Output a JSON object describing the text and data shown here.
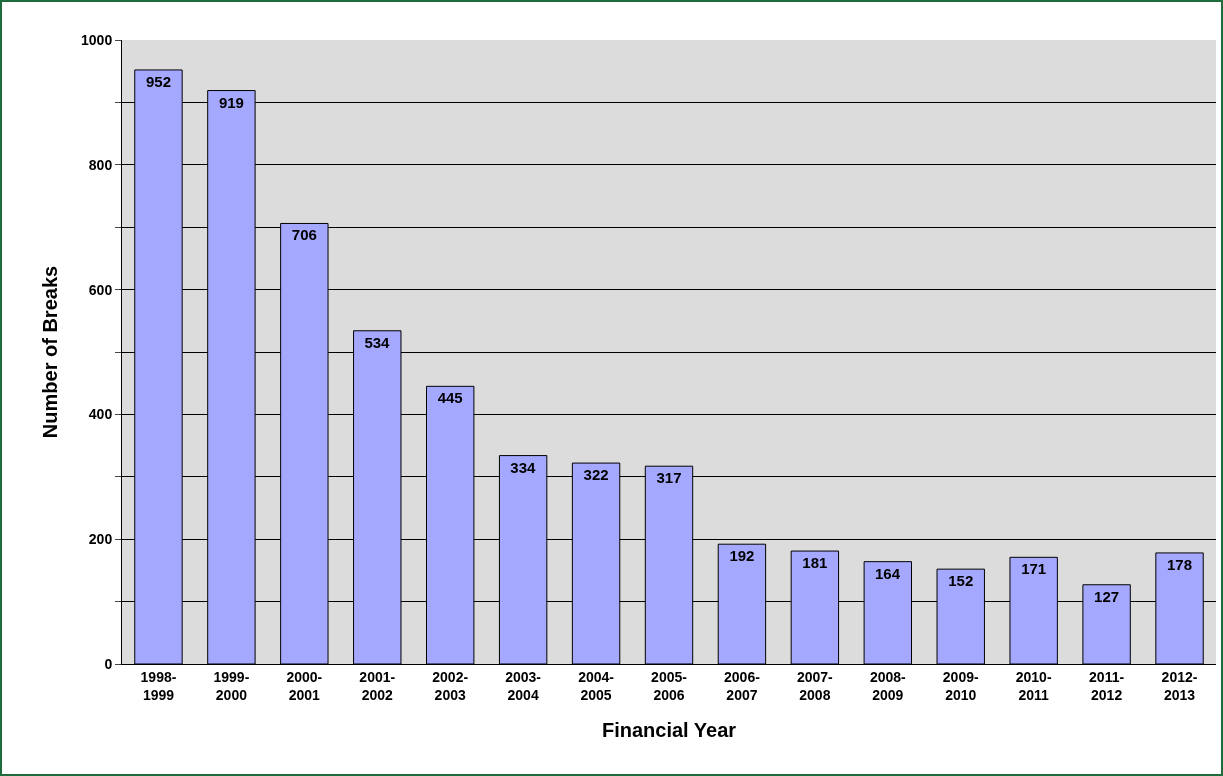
{
  "chart_data": {
    "type": "bar",
    "xlabel": "Financial Year",
    "ylabel": "Number of Breaks",
    "categories": [
      "1998-1999",
      "1999-2000",
      "2000-2001",
      "2001-2002",
      "2002-2003",
      "2003-2004",
      "2004-2005",
      "2005-2006",
      "2006-2007",
      "2007-2008",
      "2008-2009",
      "2009-2010",
      "2010-2011",
      "2011-2012",
      "2012-2013"
    ],
    "values": [
      952,
      919,
      706,
      534,
      445,
      334,
      322,
      317,
      192,
      181,
      164,
      152,
      171,
      127,
      178
    ],
    "color": "#a4a8ff",
    "data_labels": true,
    "grid": "y",
    "ylim": [
      0,
      1000
    ],
    "yticks": [
      0,
      {
        "value": 100,
        "label": null
      },
      200,
      {
        "value": 300,
        "label": null
      },
      400,
      {
        "value": 500,
        "label": null
      },
      600,
      {
        "value": 700,
        "label": null
      },
      800,
      {
        "value": 900,
        "label": null
      },
      1000
    ]
  }
}
